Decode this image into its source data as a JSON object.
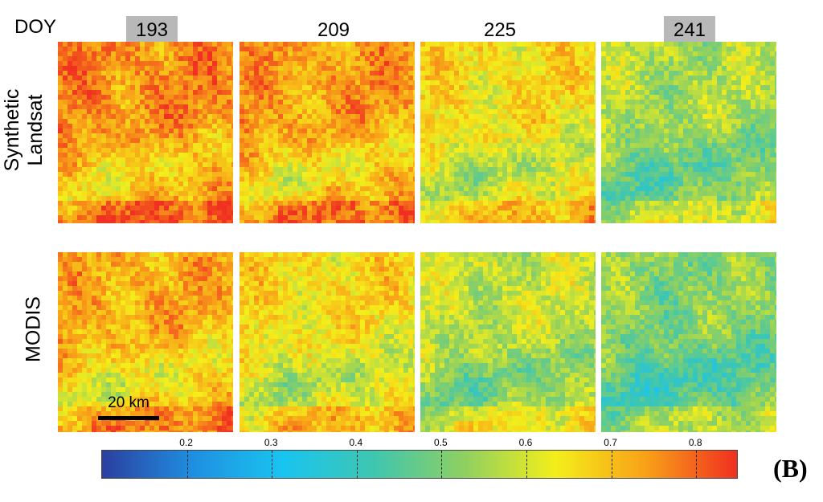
{
  "header": {
    "doy_label": "DOY"
  },
  "columns": [
    {
      "doy": "193",
      "highlighted": true
    },
    {
      "doy": "209",
      "highlighted": false
    },
    {
      "doy": "225",
      "highlighted": false
    },
    {
      "doy": "241",
      "highlighted": true
    }
  ],
  "rows": [
    {
      "label_line1": "Synthetic",
      "label_line2": "Landsat"
    },
    {
      "label_line1": "MODIS",
      "label_line2": ""
    }
  ],
  "panels": [
    [
      {
        "mean_value": 0.76
      },
      {
        "mean_value": 0.74
      },
      {
        "mean_value": 0.66
      },
      {
        "mean_value": 0.56
      }
    ],
    [
      {
        "mean_value": 0.72
      },
      {
        "mean_value": 0.66
      },
      {
        "mean_value": 0.59
      },
      {
        "mean_value": 0.52
      }
    ]
  ],
  "scalebar": {
    "label": "20 km"
  },
  "colorbar": {
    "min": 0.1,
    "max": 0.85,
    "ticks": [
      "0.2",
      "0.3",
      "0.4",
      "0.5",
      "0.6",
      "0.7",
      "0.8"
    ],
    "colors": [
      "#2b3fa0",
      "#1f8fe0",
      "#19c4f0",
      "#3fc6b0",
      "#8fd060",
      "#f4ee1a",
      "#f8a018",
      "#f03020"
    ]
  },
  "figure_label": "(B)"
}
